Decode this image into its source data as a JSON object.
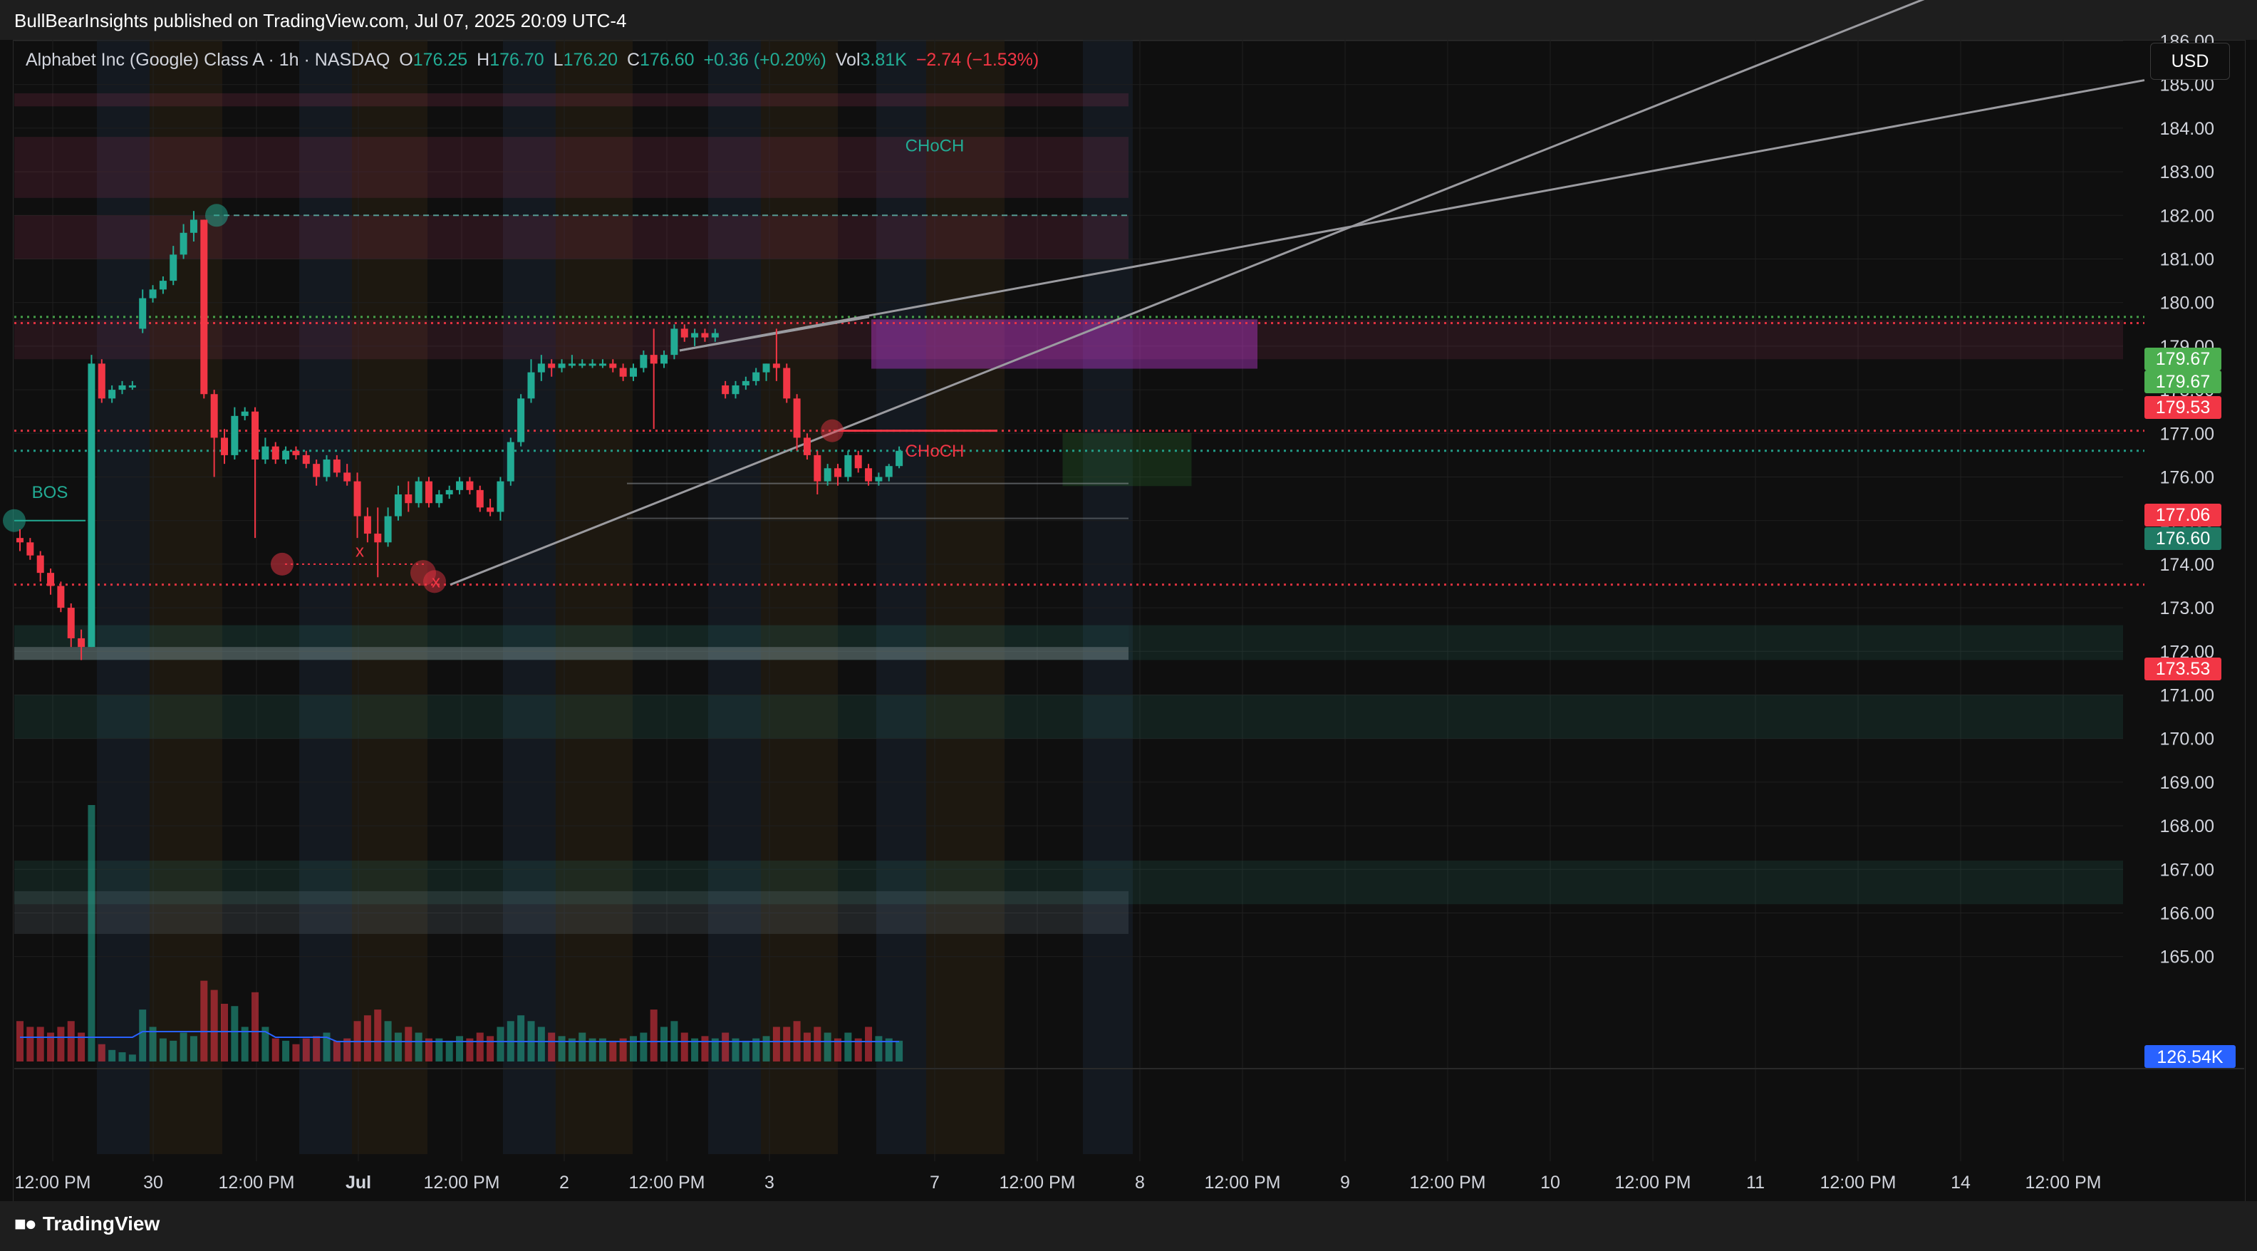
{
  "header": {
    "published_text": "BullBearInsights published on TradingView.com, Jul 07, 2025 20:09 UTC-4"
  },
  "legend": {
    "symbol": "Alphabet Inc (Google) Class A · 1h · NASDAQ",
    "o_label": "O",
    "o_value": "176.25",
    "h_label": "H",
    "h_value": "176.70",
    "l_label": "L",
    "l_value": "176.20",
    "c_label": "C",
    "c_value": "176.60",
    "change": "+0.36 (+0.20%)",
    "vol_label": "Vol",
    "vol_value": "3.81K",
    "vol_change": "−2.74 (−1.53%)"
  },
  "toolbar": {
    "currency": "USD"
  },
  "footer": {
    "brand": "TradingView"
  },
  "colors": {
    "up": "#22ab94",
    "down": "#f23645",
    "bg": "#0f0f0f",
    "grid": "#1f1f1f",
    "text": "#d1d4dc",
    "trendline": "#9b9ba0",
    "magenta_zone": "#e040fb",
    "volume_ma": "#2962ff"
  },
  "chart_data": {
    "type": "candlestick",
    "symbol": "Alphabet Inc (Google) Class A",
    "interval": "1h",
    "exchange": "NASDAQ",
    "ylim": [
      165,
      187.5
    ],
    "y_ticks": [
      "165.00",
      "166.00",
      "167.00",
      "168.00",
      "169.00",
      "170.00",
      "171.00",
      "172.00",
      "173.00",
      "174.00",
      "175.00",
      "176.00",
      "177.00",
      "178.00",
      "179.00",
      "180.00",
      "181.00",
      "182.00",
      "183.00",
      "184.00",
      "185.00",
      "186.00"
    ],
    "x_ticks": [
      "12:00 PM",
      "30",
      "12:00 PM",
      "Jul",
      "12:00 PM",
      "2",
      "12:00 PM",
      "3",
      "7",
      "12:00 PM",
      "8",
      "12:00 PM",
      "9",
      "12:00 PM",
      "10",
      "12:00 PM",
      "11",
      "12:00 PM",
      "14",
      "12:00 PM"
    ],
    "x_tick_bold": [
      false,
      false,
      false,
      true,
      false,
      false,
      false,
      false,
      false,
      false,
      false,
      false,
      false,
      false,
      false,
      false,
      false,
      false,
      false,
      false
    ],
    "candles": [
      [
        174.6,
        174.8,
        174.3,
        174.5
      ],
      [
        174.5,
        174.6,
        174.1,
        174.2
      ],
      [
        174.2,
        174.3,
        173.6,
        173.8
      ],
      [
        173.8,
        173.9,
        173.3,
        173.5
      ],
      [
        173.5,
        173.6,
        172.9,
        173.0
      ],
      [
        173.0,
        173.1,
        172.1,
        172.3
      ],
      [
        172.3,
        172.5,
        171.8,
        172.1
      ],
      [
        172.1,
        178.8,
        172.1,
        178.6
      ],
      [
        178.6,
        178.7,
        177.7,
        177.8
      ],
      [
        177.8,
        178.1,
        177.7,
        178.0
      ],
      [
        178.0,
        178.2,
        177.9,
        178.1
      ],
      [
        178.1,
        178.2,
        178.0,
        178.1
      ],
      [
        179.4,
        180.3,
        179.3,
        180.1
      ],
      [
        180.1,
        180.4,
        180.0,
        180.3
      ],
      [
        180.3,
        180.6,
        180.2,
        180.5
      ],
      [
        180.5,
        181.3,
        180.4,
        181.1
      ],
      [
        181.1,
        181.8,
        181.0,
        181.6
      ],
      [
        181.6,
        182.1,
        181.4,
        181.9
      ],
      [
        181.9,
        181.9,
        177.8,
        177.9
      ],
      [
        177.9,
        178.0,
        176.0,
        176.9
      ],
      [
        176.9,
        177.1,
        176.3,
        176.5
      ],
      [
        176.5,
        177.6,
        176.4,
        177.4
      ],
      [
        177.4,
        177.6,
        177.3,
        177.5
      ],
      [
        177.5,
        177.6,
        174.6,
        176.4
      ],
      [
        176.4,
        176.9,
        176.3,
        176.7
      ],
      [
        176.7,
        176.8,
        176.3,
        176.4
      ],
      [
        176.4,
        176.7,
        176.3,
        176.6
      ],
      [
        176.6,
        176.7,
        176.4,
        176.5
      ],
      [
        176.5,
        176.6,
        176.2,
        176.3
      ],
      [
        176.3,
        176.4,
        175.8,
        176.0
      ],
      [
        176.0,
        176.5,
        175.9,
        176.4
      ],
      [
        176.4,
        176.5,
        176.0,
        176.1
      ],
      [
        176.1,
        176.3,
        175.8,
        175.9
      ],
      [
        175.9,
        176.1,
        174.6,
        175.1
      ],
      [
        175.1,
        175.3,
        174.5,
        174.7
      ],
      [
        174.7,
        175.3,
        173.7,
        174.5
      ],
      [
        174.5,
        175.3,
        174.4,
        175.1
      ],
      [
        175.1,
        175.8,
        175.0,
        175.6
      ],
      [
        175.6,
        175.9,
        175.2,
        175.4
      ],
      [
        175.4,
        176.0,
        175.3,
        175.9
      ],
      [
        175.9,
        176.0,
        175.3,
        175.4
      ],
      [
        175.4,
        175.7,
        175.3,
        175.6
      ],
      [
        175.6,
        175.8,
        175.5,
        175.7
      ],
      [
        175.7,
        176.0,
        175.6,
        175.9
      ],
      [
        175.9,
        176.0,
        175.6,
        175.7
      ],
      [
        175.7,
        175.8,
        175.2,
        175.3
      ],
      [
        175.3,
        175.5,
        175.1,
        175.2
      ],
      [
        175.2,
        176.0,
        175.0,
        175.9
      ],
      [
        175.9,
        176.9,
        175.8,
        176.8
      ],
      [
        176.8,
        177.9,
        176.7,
        177.8
      ],
      [
        177.8,
        178.7,
        177.7,
        178.4
      ],
      [
        178.4,
        178.8,
        178.2,
        178.6
      ],
      [
        178.6,
        178.7,
        178.3,
        178.5
      ],
      [
        178.5,
        178.7,
        178.4,
        178.6
      ],
      [
        178.6,
        178.8,
        178.5,
        178.6
      ],
      [
        178.6,
        178.7,
        178.5,
        178.6
      ],
      [
        178.6,
        178.7,
        178.5,
        178.6
      ],
      [
        178.6,
        178.7,
        178.5,
        178.6
      ],
      [
        178.6,
        178.7,
        178.4,
        178.5
      ],
      [
        178.5,
        178.6,
        178.2,
        178.3
      ],
      [
        178.3,
        178.6,
        178.2,
        178.5
      ],
      [
        178.5,
        178.9,
        178.4,
        178.8
      ],
      [
        178.8,
        179.4,
        177.1,
        178.6
      ],
      [
        178.6,
        178.9,
        178.5,
        178.8
      ],
      [
        178.8,
        179.5,
        178.7,
        179.4
      ],
      [
        179.4,
        179.5,
        179.1,
        179.2
      ],
      [
        179.2,
        179.4,
        179.0,
        179.3
      ],
      [
        179.3,
        179.4,
        179.1,
        179.2
      ],
      [
        179.2,
        179.4,
        179.1,
        179.3
      ],
      [
        178.1,
        178.2,
        177.8,
        177.9
      ],
      [
        177.9,
        178.2,
        177.8,
        178.1
      ],
      [
        178.1,
        178.3,
        178.0,
        178.2
      ],
      [
        178.2,
        178.5,
        178.1,
        178.4
      ],
      [
        178.4,
        178.6,
        178.2,
        178.6
      ],
      [
        178.6,
        179.4,
        178.2,
        178.5
      ],
      [
        178.5,
        178.6,
        177.7,
        177.8
      ],
      [
        177.8,
        177.9,
        176.6,
        176.9
      ],
      [
        176.9,
        177.0,
        176.4,
        176.5
      ],
      [
        176.5,
        176.6,
        175.6,
        175.9
      ],
      [
        175.9,
        176.3,
        175.8,
        176.2
      ],
      [
        176.2,
        176.3,
        175.8,
        176.0
      ],
      [
        176.0,
        176.6,
        175.9,
        176.5
      ],
      [
        176.5,
        176.6,
        176.1,
        176.2
      ],
      [
        176.2,
        176.3,
        175.8,
        175.9
      ],
      [
        175.9,
        176.1,
        175.8,
        176.0
      ],
      [
        176.0,
        176.3,
        175.9,
        176.25
      ],
      [
        176.25,
        176.7,
        176.2,
        176.6
      ]
    ],
    "volume_ratio": [
      0.35,
      0.3,
      0.3,
      0.25,
      0.3,
      0.35,
      0.25,
      1.0,
      0.15,
      0.1,
      0.08,
      0.06,
      0.45,
      0.3,
      0.2,
      0.18,
      0.25,
      0.22,
      0.7,
      0.62,
      0.5,
      0.48,
      0.3,
      0.6,
      0.3,
      0.2,
      0.18,
      0.15,
      0.2,
      0.22,
      0.25,
      0.18,
      0.2,
      0.35,
      0.4,
      0.45,
      0.35,
      0.25,
      0.3,
      0.25,
      0.2,
      0.2,
      0.18,
      0.22,
      0.2,
      0.25,
      0.22,
      0.3,
      0.35,
      0.4,
      0.35,
      0.3,
      0.25,
      0.22,
      0.2,
      0.25,
      0.2,
      0.2,
      0.18,
      0.2,
      0.22,
      0.25,
      0.45,
      0.3,
      0.35,
      0.25,
      0.2,
      0.22,
      0.2,
      0.25,
      0.2,
      0.18,
      0.2,
      0.22,
      0.3,
      0.3,
      0.35,
      0.25,
      0.3,
      0.25,
      0.2,
      0.25,
      0.2,
      0.3,
      0.22,
      0.2,
      0.18
    ],
    "price_labels": [
      {
        "text": "179.67",
        "value": 179.67,
        "color": "#4caf50"
      },
      {
        "text": "179.67",
        "value": 179.67,
        "color": "#4caf50"
      },
      {
        "text": "179.53",
        "value": 179.53,
        "color": "#f23645"
      },
      {
        "text": "177.06",
        "value": 177.06,
        "color": "#f23645"
      },
      {
        "text": "176.60",
        "value": 176.6,
        "color": "#1f7a64"
      },
      {
        "text": "173.53",
        "value": 173.53,
        "color": "#f23645"
      }
    ],
    "volume_label": "126.54K",
    "horizontal_levels": [
      {
        "value": 179.67,
        "color": "#4caf50",
        "style": "dotted"
      },
      {
        "value": 179.53,
        "color": "#f23645",
        "style": "dotted"
      },
      {
        "value": 177.06,
        "color": "#f23645",
        "style": "dotted"
      },
      {
        "value": 173.53,
        "color": "#f23645",
        "style": "dotted"
      },
      {
        "value": 182.0,
        "color": "#5aa7a0",
        "style": "dashed"
      },
      {
        "value": 176.6,
        "color": "#22ab94",
        "style": "dotted"
      }
    ],
    "annotations": [
      {
        "text": "CHoCH",
        "value": 183.6,
        "color": "#22ab94"
      },
      {
        "text": "CHoCH",
        "value": 176.6,
        "color": "#f23645"
      },
      {
        "text": "BOS",
        "value": 175.65,
        "color": "#22ab94"
      },
      {
        "text": "x",
        "value": 174.3,
        "color": "#f23645"
      },
      {
        "text": "x",
        "value": 173.6,
        "color": "#f23645"
      }
    ],
    "zones": [
      {
        "y1": 184.8,
        "y2": 184.5,
        "color": "#d04070",
        "opacity": 0.15
      },
      {
        "y1": 183.8,
        "y2": 182.4,
        "color": "#d04070",
        "opacity": 0.14
      },
      {
        "y1": 182.0,
        "y2": 181.0,
        "color": "#d04070",
        "opacity": 0.14
      },
      {
        "y1": 179.6,
        "y2": 178.7,
        "color": "#d04070",
        "opacity": 0.12
      },
      {
        "y1": 172.6,
        "y2": 171.8,
        "color": "#2e8c7c",
        "opacity": 0.18
      },
      {
        "y1": 171.0,
        "y2": 170.0,
        "color": "#2e8c7c",
        "opacity": 0.15
      },
      {
        "y1": 167.2,
        "y2": 166.2,
        "color": "#2e8c7c",
        "opacity": 0.15
      }
    ]
  }
}
